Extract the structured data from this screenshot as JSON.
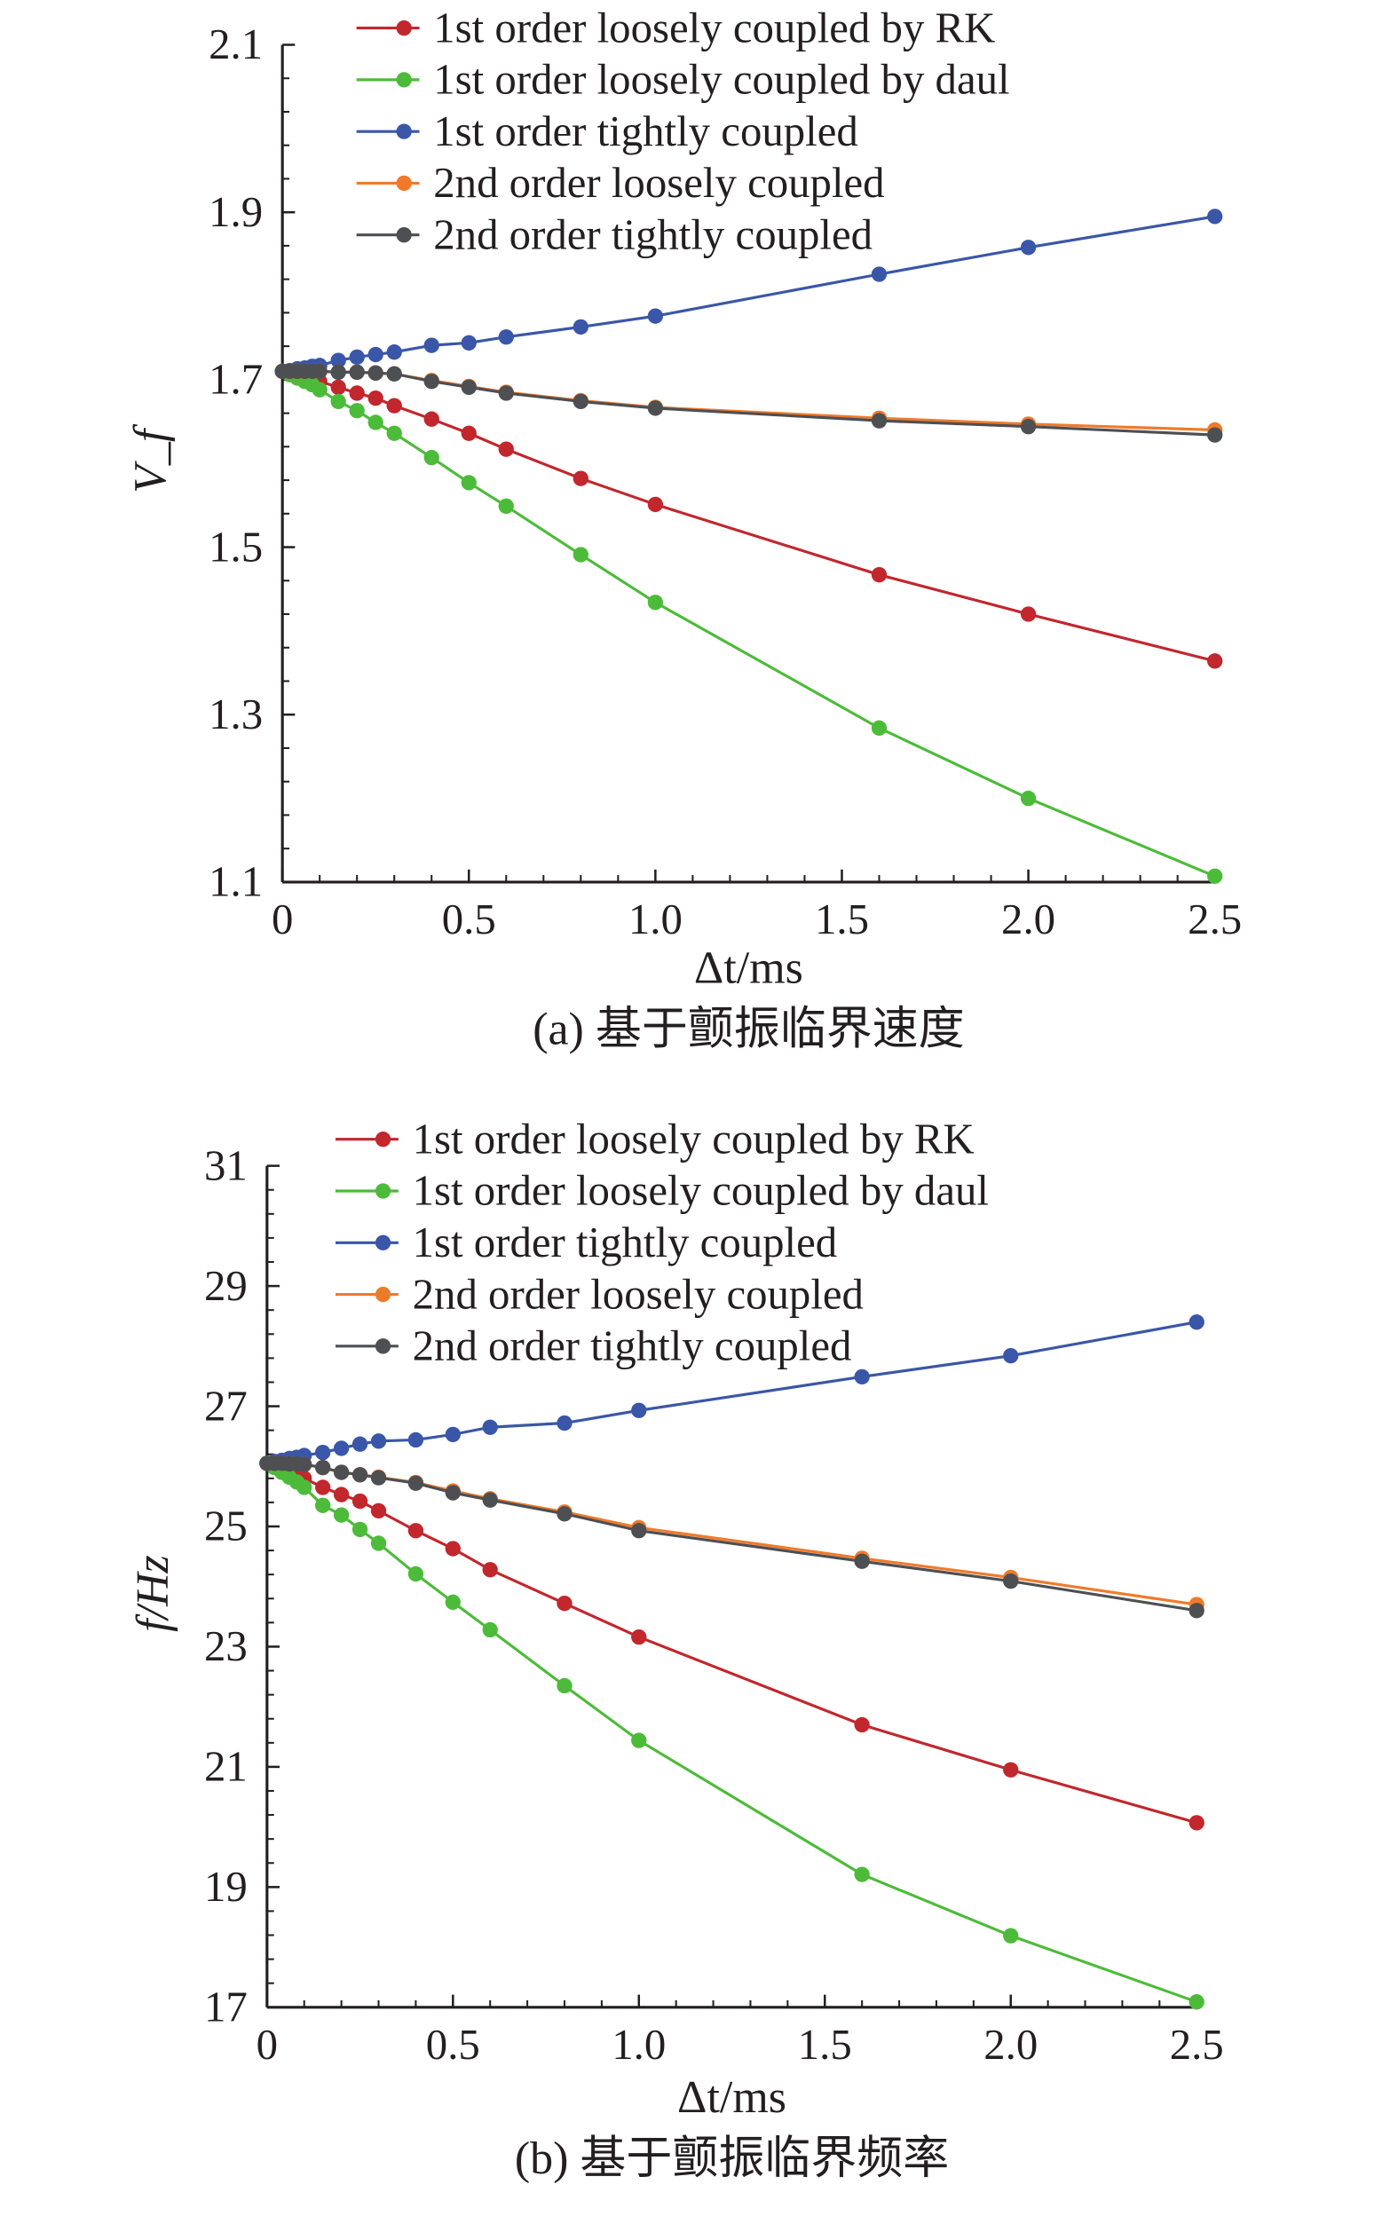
{
  "chart_data": [
    {
      "type": "line",
      "xlabel": "Δt/ms",
      "ylabel": "V_f",
      "caption": "(a) 基于颤振临界速度",
      "xlim": [
        0,
        2.5
      ],
      "ylim": [
        1.1,
        2.1
      ],
      "xticks": [
        "0",
        "0.5",
        "1.0",
        "1.5",
        "2.0",
        "2.5"
      ],
      "xtick_values": [
        0,
        0.5,
        1.0,
        1.5,
        2.0,
        2.5
      ],
      "yticks": [
        "1.1",
        "1.3",
        "1.5",
        "1.7",
        "1.9",
        "2.1"
      ],
      "ytick_values": [
        1.1,
        1.3,
        1.5,
        1.7,
        1.9,
        2.1
      ],
      "legend_position": "top",
      "grid": false,
      "x": [
        0,
        0.02,
        0.04,
        0.06,
        0.08,
        0.1,
        0.15,
        0.2,
        0.25,
        0.3,
        0.4,
        0.5,
        0.6,
        0.8,
        1.0,
        1.6,
        2.0,
        2.5
      ],
      "series": [
        {
          "name": "1st order loosely coupled by RK",
          "color": "#c1272d",
          "values": [
            1.71,
            1.708,
            1.706,
            1.703,
            1.701,
            1.698,
            1.691,
            1.684,
            1.678,
            1.669,
            1.653,
            1.636,
            1.617,
            1.582,
            1.551,
            1.467,
            1.42,
            1.364
          ]
        },
        {
          "name": "1st order loosely coupled by daul",
          "color": "#4dbb3a",
          "values": [
            1.71,
            1.706,
            1.702,
            1.698,
            1.694,
            1.688,
            1.674,
            1.663,
            1.649,
            1.636,
            1.607,
            1.577,
            1.549,
            1.491,
            1.434,
            1.284,
            1.2,
            1.107
          ]
        },
        {
          "name": "1st order tightly coupled",
          "color": "#3a56a8",
          "values": [
            1.71,
            1.711,
            1.713,
            1.714,
            1.716,
            1.717,
            1.723,
            1.727,
            1.73,
            1.733,
            1.741,
            1.744,
            1.751,
            1.763,
            1.776,
            1.826,
            1.858,
            1.895
          ]
        },
        {
          "name": "2nd order loosely coupled",
          "color": "#f07a2a",
          "values": [
            1.71,
            1.71,
            1.71,
            1.71,
            1.71,
            1.71,
            1.709,
            1.709,
            1.708,
            1.707,
            1.699,
            1.692,
            1.685,
            1.675,
            1.667,
            1.654,
            1.647,
            1.64
          ]
        },
        {
          "name": "2nd order tightly coupled",
          "color": "#4d4f53",
          "values": [
            1.71,
            1.71,
            1.71,
            1.71,
            1.71,
            1.71,
            1.709,
            1.709,
            1.708,
            1.707,
            1.698,
            1.691,
            1.684,
            1.674,
            1.666,
            1.651,
            1.644,
            1.634
          ]
        }
      ]
    },
    {
      "type": "line",
      "xlabel": "Δt/ms",
      "ylabel": "f/Hz",
      "caption": "(b) 基于颤振临界频率",
      "xlim": [
        0,
        2.5
      ],
      "ylim": [
        17,
        31
      ],
      "xticks": [
        "0",
        "0.5",
        "1.0",
        "1.5",
        "2.0",
        "2.5"
      ],
      "xtick_values": [
        0,
        0.5,
        1.0,
        1.5,
        2.0,
        2.5
      ],
      "yticks": [
        "17",
        "19",
        "21",
        "23",
        "25",
        "27",
        "29",
        "31"
      ],
      "ytick_values": [
        17,
        19,
        21,
        23,
        25,
        27,
        29,
        31
      ],
      "legend_position": "top",
      "grid": false,
      "x": [
        0,
        0.02,
        0.04,
        0.06,
        0.08,
        0.1,
        0.15,
        0.2,
        0.25,
        0.3,
        0.4,
        0.5,
        0.6,
        0.8,
        1.0,
        1.6,
        2.0,
        2.5
      ],
      "series": [
        {
          "name": "1st order loosely coupled by RK",
          "color": "#c1272d",
          "values": [
            26.05,
            26.0,
            25.95,
            25.9,
            25.85,
            25.8,
            25.65,
            25.53,
            25.42,
            25.26,
            24.93,
            24.63,
            24.28,
            23.72,
            23.16,
            21.7,
            20.95,
            20.07
          ]
        },
        {
          "name": "1st order loosely coupled by daul",
          "color": "#4dbb3a",
          "values": [
            26.05,
            25.98,
            25.9,
            25.82,
            25.74,
            25.65,
            25.35,
            25.19,
            24.95,
            24.72,
            24.21,
            23.74,
            23.28,
            22.35,
            21.44,
            19.21,
            18.19,
            17.09
          ]
        },
        {
          "name": "1st order tightly coupled",
          "color": "#3a56a8",
          "values": [
            26.05,
            26.08,
            26.1,
            26.13,
            26.15,
            26.18,
            26.23,
            26.3,
            26.37,
            26.42,
            26.44,
            26.53,
            26.65,
            26.72,
            26.93,
            27.49,
            27.84,
            28.4
          ]
        },
        {
          "name": "2nd order loosely coupled",
          "color": "#f07a2a",
          "values": [
            26.05,
            26.05,
            26.05,
            26.04,
            26.04,
            26.03,
            25.98,
            25.9,
            25.86,
            25.82,
            25.73,
            25.59,
            25.46,
            25.24,
            24.98,
            24.47,
            24.15,
            23.7
          ]
        },
        {
          "name": "2nd order tightly coupled",
          "color": "#4d4f53",
          "values": [
            26.05,
            26.05,
            26.05,
            26.04,
            26.04,
            26.03,
            25.98,
            25.9,
            25.86,
            25.81,
            25.72,
            25.56,
            25.44,
            25.21,
            24.93,
            24.42,
            24.09,
            23.6
          ]
        }
      ]
    }
  ]
}
